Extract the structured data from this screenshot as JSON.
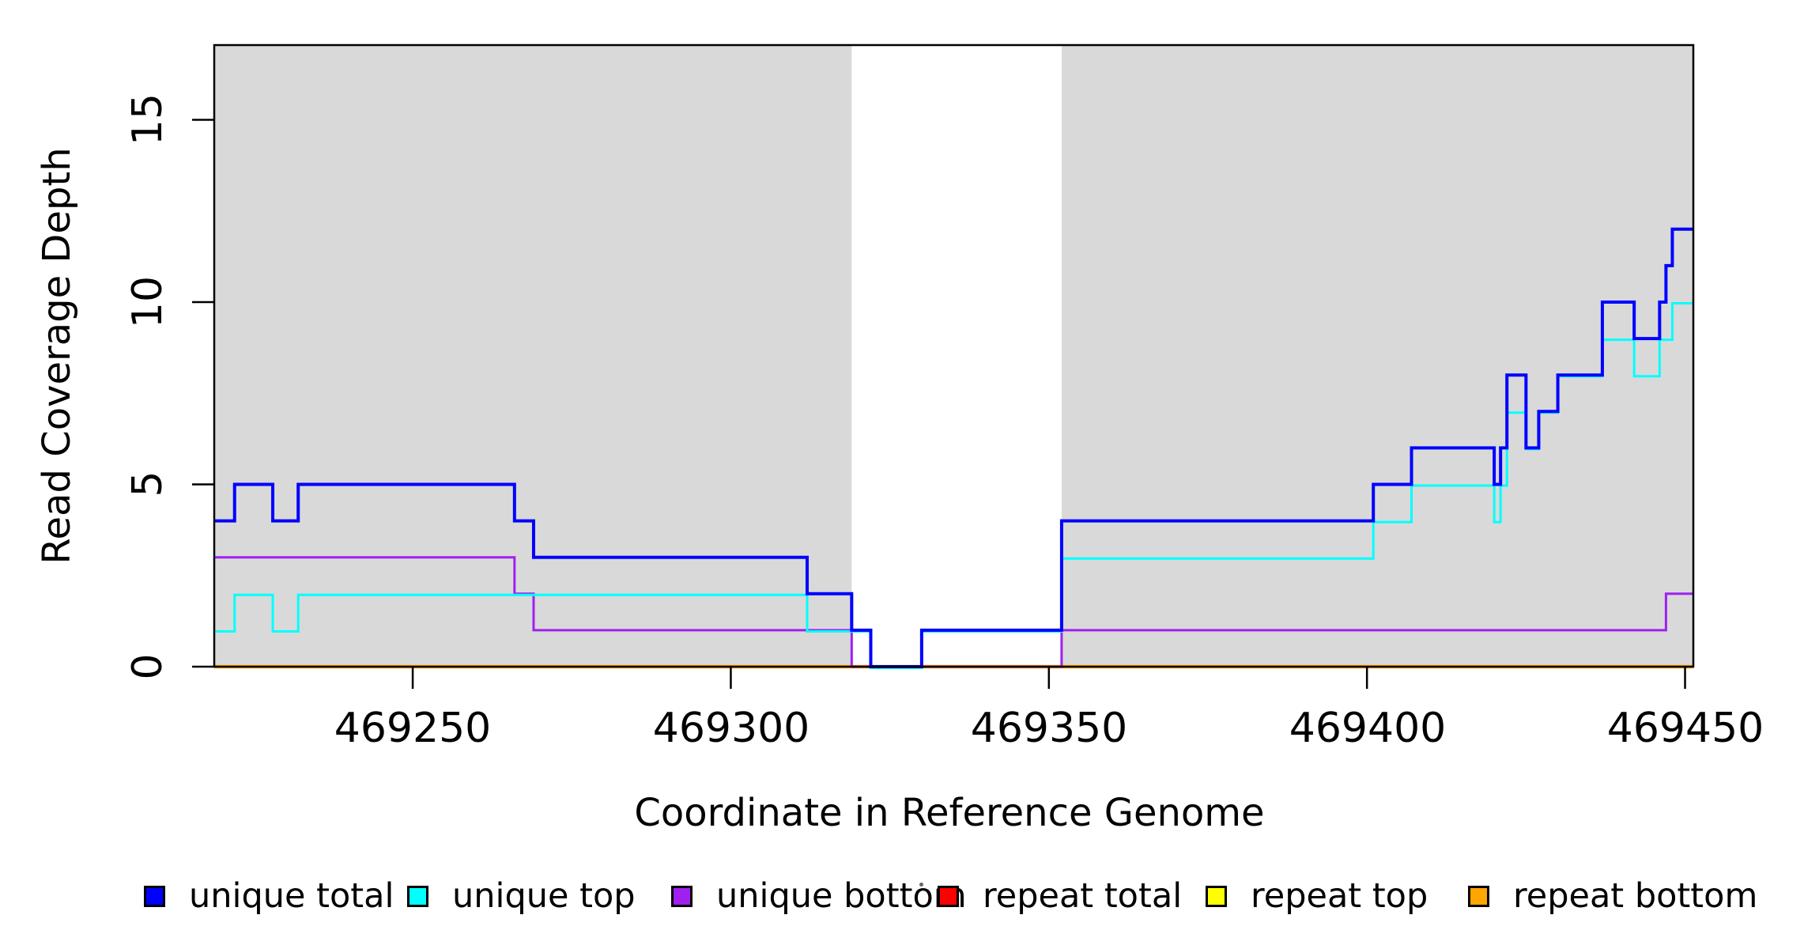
{
  "chart_data": {
    "type": "line",
    "subtype": "step-coverage",
    "title": "",
    "xlabel": "Coordinate in Reference Genome",
    "ylabel": "Read Coverage Depth",
    "xlim": [
      469218.8,
      469451.3
    ],
    "ylim": [
      0,
      17.05
    ],
    "xticks": [
      469250,
      469300,
      469350,
      469400,
      469450
    ],
    "yticks": [
      0,
      5,
      10,
      15
    ],
    "xtick_labels": [
      "469250",
      "469300",
      "469350",
      "469400",
      "469450"
    ],
    "ytick_labels": [
      "0",
      "5",
      "10",
      "15"
    ],
    "grid": false,
    "legend_position": "bottom",
    "shade_color": "#D9D9D9",
    "shaded_regions": [
      [
        469218.8,
        469319
      ],
      [
        469352,
        469451.3
      ]
    ],
    "series": [
      {
        "id": "repeat-total",
        "name": "repeat total",
        "color": "#FF0000",
        "width": 3,
        "dy": 0,
        "steps": [
          [
            469218.8,
            0
          ]
        ]
      },
      {
        "id": "repeat-top",
        "name": "repeat top",
        "color": "#FFFF00",
        "width": 3,
        "dy": 0,
        "steps": [
          [
            469218.8,
            0
          ]
        ]
      },
      {
        "id": "repeat-bottom",
        "name": "repeat bottom",
        "color": "#FFA500",
        "width": 4.5,
        "dy": 0,
        "steps": [
          [
            469218.8,
            0
          ]
        ]
      },
      {
        "id": "unique-bottom",
        "name": "unique bottom",
        "color": "#A020F0",
        "width": 3,
        "dy": 0,
        "steps": [
          [
            469218.8,
            3
          ],
          [
            469266,
            2
          ],
          [
            469269,
            1
          ],
          [
            469319,
            0
          ],
          [
            469352,
            1
          ],
          [
            469447,
            2
          ]
        ]
      },
      {
        "id": "unique-top",
        "name": "unique top",
        "color": "#00FFFF",
        "width": 3,
        "dy": 1.5,
        "steps": [
          [
            469218.8,
            1
          ],
          [
            469222,
            2
          ],
          [
            469228,
            1
          ],
          [
            469232,
            2
          ],
          [
            469312,
            1
          ],
          [
            469322,
            0
          ],
          [
            469330,
            1
          ],
          [
            469352,
            3
          ],
          [
            469401,
            4
          ],
          [
            469407,
            5
          ],
          [
            469420,
            4
          ],
          [
            469421,
            5
          ],
          [
            469422,
            7
          ],
          [
            469425,
            6
          ],
          [
            469427,
            7
          ],
          [
            469430,
            8
          ],
          [
            469437,
            9
          ],
          [
            469442,
            8
          ],
          [
            469446,
            9
          ],
          [
            469448,
            10
          ]
        ]
      },
      {
        "id": "unique-total",
        "name": "unique total",
        "color": "#0000FF",
        "width": 4,
        "dy": 0,
        "steps": [
          [
            469218.8,
            4
          ],
          [
            469222,
            5
          ],
          [
            469228,
            4
          ],
          [
            469232,
            5
          ],
          [
            469266,
            4
          ],
          [
            469269,
            3
          ],
          [
            469312,
            2
          ],
          [
            469319,
            1
          ],
          [
            469322,
            0
          ],
          [
            469330,
            1
          ],
          [
            469352,
            4
          ],
          [
            469401,
            5
          ],
          [
            469407,
            6
          ],
          [
            469420,
            5
          ],
          [
            469421,
            6
          ],
          [
            469422,
            8
          ],
          [
            469425,
            6
          ],
          [
            469427,
            7
          ],
          [
            469430,
            8
          ],
          [
            469437,
            10
          ],
          [
            469442,
            9
          ],
          [
            469446,
            10
          ],
          [
            469447,
            11
          ],
          [
            469448,
            12
          ]
        ]
      }
    ]
  },
  "legend": {
    "items": [
      {
        "label": "unique total",
        "color": "#0000FF"
      },
      {
        "label": "unique top",
        "color": "#00FFFF"
      },
      {
        "label": "unique bottom",
        "color": "#A020F0"
      },
      {
        "label": "repeat total",
        "color": "#FF0000"
      },
      {
        "label": "repeat top",
        "color": "#FFFF00"
      },
      {
        "label": "repeat bottom",
        "color": "#FFA500"
      }
    ]
  }
}
